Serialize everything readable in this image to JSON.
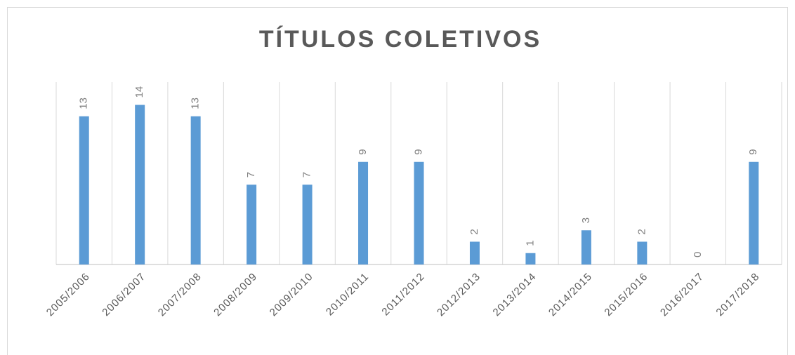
{
  "chart_data": {
    "type": "bar",
    "title": "TÍTULOS COLETIVOS",
    "categories": [
      "2005/2006",
      "2006/2007",
      "2007/2008",
      "2008/2009",
      "2009/2010",
      "2010/2011",
      "2011/2012",
      "2012/2013",
      "2013/2014",
      "2014/2015",
      "2015/2016",
      "2016/2017",
      "2017/2018"
    ],
    "values": [
      13,
      14,
      13,
      7,
      7,
      9,
      9,
      2,
      1,
      3,
      2,
      0,
      9
    ],
    "color": "#5b9bd5",
    "ylim": [
      0,
      16
    ],
    "grid": true
  }
}
